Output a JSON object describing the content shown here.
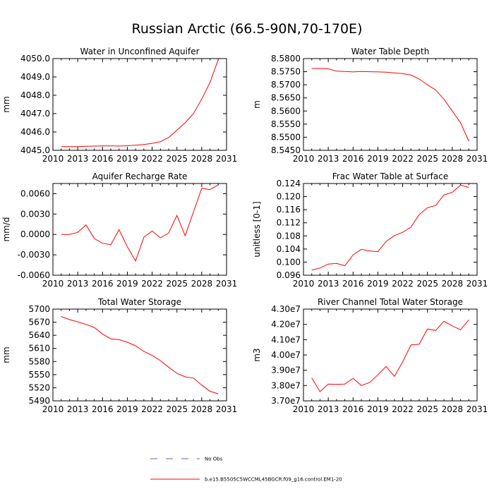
{
  "title": "Russian Arctic (66.5-90N,70-170E)",
  "colors": {
    "model": "#ff0000",
    "obs": "#6666aa",
    "axis": "#000000"
  },
  "legend": [
    {
      "label": "No Obs",
      "style": "dashed",
      "color": "#6666aa"
    },
    {
      "label": "b.e15.B5505C5WCCML45BGCR.f09_g16.control.EM1-20",
      "style": "solid",
      "color": "#ff0000"
    }
  ],
  "chart_data": [
    {
      "type": "line",
      "title": "Water in Unconfined Aquifer",
      "ylabel": "mm",
      "xlim": [
        2010,
        2031
      ],
      "xticks": [
        2010,
        2013,
        2016,
        2019,
        2022,
        2025,
        2028,
        2031
      ],
      "ylim": [
        4045.0,
        4050.0
      ],
      "yticks": [
        4045.0,
        4046.0,
        4047.0,
        4048.0,
        4049.0,
        4050.0
      ],
      "ytick_labels": [
        "4045.0",
        "4046.0",
        "4047.0",
        "4048.0",
        "4049.0",
        "4050.0"
      ],
      "x": [
        2011,
        2012,
        2013,
        2014,
        2015,
        2016,
        2017,
        2018,
        2019,
        2020,
        2021,
        2022,
        2023,
        2024,
        2025,
        2026,
        2027,
        2028,
        2029,
        2030
      ],
      "series": [
        {
          "name": "b.e15.B5505C5WCCML45BGCR.f09_g16.control.EM1-20",
          "values": [
            4045.2,
            4045.2,
            4045.2,
            4045.22,
            4045.23,
            4045.24,
            4045.24,
            4045.23,
            4045.25,
            4045.28,
            4045.32,
            4045.38,
            4045.47,
            4045.7,
            4046.1,
            4046.5,
            4047.0,
            4047.8,
            4048.7,
            4049.95
          ]
        }
      ]
    },
    {
      "type": "line",
      "title": "Water Table Depth",
      "ylabel": "m",
      "xlim": [
        2010,
        2031
      ],
      "xticks": [
        2010,
        2013,
        2016,
        2019,
        2022,
        2025,
        2028,
        2031
      ],
      "ylim": [
        8.545,
        8.58
      ],
      "yticks": [
        8.545,
        8.55,
        8.555,
        8.56,
        8.565,
        8.57,
        8.575,
        8.58
      ],
      "ytick_labels": [
        "8.5450",
        "8.5500",
        "8.5550",
        "8.5600",
        "8.5650",
        "8.5700",
        "8.5750",
        "8.5800"
      ],
      "x": [
        2011,
        2012,
        2013,
        2014,
        2015,
        2016,
        2017,
        2018,
        2019,
        2020,
        2021,
        2022,
        2023,
        2024,
        2025,
        2026,
        2027,
        2028,
        2029,
        2030
      ],
      "series": [
        {
          "name": "b.e15.B5505C5WCCML45BGCR.f09_g16.control.EM1-20",
          "values": [
            8.5762,
            8.5762,
            8.5761,
            8.5752,
            8.5751,
            8.5749,
            8.5751,
            8.575,
            8.5749,
            8.5748,
            8.5745,
            8.5743,
            8.5737,
            8.5722,
            8.57,
            8.568,
            8.5645,
            8.56,
            8.5555,
            8.5485
          ]
        }
      ]
    },
    {
      "type": "line",
      "title": "Aquifer Recharge Rate",
      "ylabel": "mm/d",
      "xlim": [
        2010,
        2031
      ],
      "xticks": [
        2010,
        2013,
        2016,
        2019,
        2022,
        2025,
        2028,
        2031
      ],
      "ylim": [
        -0.006,
        0.0075
      ],
      "yticks": [
        -0.006,
        -0.003,
        0.0,
        0.003,
        0.006
      ],
      "ytick_labels": [
        "-0.0060",
        "-0.0030",
        "0.0000",
        "0.0030",
        "0.0060"
      ],
      "x": [
        2011,
        2012,
        2013,
        2014,
        2015,
        2016,
        2017,
        2018,
        2019,
        2020,
        2021,
        2022,
        2023,
        2024,
        2025,
        2026,
        2027,
        2028,
        2029,
        2030
      ],
      "series": [
        {
          "name": "b.e15.B5505C5WCCML45BGCR.f09_g16.control.EM1-20",
          "values": [
            0.0,
            0.0,
            0.0003,
            0.0014,
            -0.0006,
            -0.0013,
            -0.0015,
            0.0007,
            -0.0018,
            -0.0039,
            -0.0004,
            0.0005,
            -0.0005,
            0.0002,
            0.0028,
            -0.0002,
            0.0033,
            0.0068,
            0.0066,
            0.0073
          ]
        }
      ]
    },
    {
      "type": "line",
      "title": "Frac Water Table at Surface",
      "ylabel": "unitless [0-1]",
      "xlim": [
        2010,
        2031
      ],
      "xticks": [
        2010,
        2013,
        2016,
        2019,
        2022,
        2025,
        2028,
        2031
      ],
      "ylim": [
        0.096,
        0.124
      ],
      "yticks": [
        0.096,
        0.1,
        0.104,
        0.108,
        0.112,
        0.116,
        0.12,
        0.124
      ],
      "ytick_labels": [
        "0.096",
        "0.100",
        "0.104",
        "0.108",
        "0.112",
        "0.116",
        "0.120",
        "0.124"
      ],
      "x": [
        2011,
        2012,
        2013,
        2014,
        2015,
        2016,
        2017,
        2018,
        2019,
        2020,
        2021,
        2022,
        2023,
        2024,
        2025,
        2026,
        2027,
        2028,
        2029,
        2030
      ],
      "series": [
        {
          "name": "b.e15.B5505C5WCCML45BGCR.f09_g16.control.EM1-20",
          "values": [
            0.0976,
            0.0982,
            0.0994,
            0.0996,
            0.0989,
            0.1022,
            0.1039,
            0.1034,
            0.1032,
            0.1063,
            0.1081,
            0.1091,
            0.1107,
            0.1145,
            0.1166,
            0.1173,
            0.1205,
            0.1213,
            0.1235,
            0.1228
          ]
        }
      ]
    },
    {
      "type": "line",
      "title": "Total Water Storage",
      "ylabel": "mm",
      "xlim": [
        2010,
        2031
      ],
      "xticks": [
        2010,
        2013,
        2016,
        2019,
        2022,
        2025,
        2028,
        2031
      ],
      "ylim": [
        5490,
        5700
      ],
      "yticks": [
        5490,
        5520,
        5550,
        5580,
        5610,
        5640,
        5670,
        5700
      ],
      "ytick_labels": [
        "5490",
        "5520",
        "5550",
        "5580",
        "5610",
        "5640",
        "5670",
        "5700"
      ],
      "x": [
        2011,
        2012,
        2013,
        2014,
        2015,
        2016,
        2017,
        2018,
        2019,
        2020,
        2021,
        2022,
        2023,
        2024,
        2025,
        2026,
        2027,
        2028,
        2029,
        2030
      ],
      "series": [
        {
          "name": "b.e15.B5505C5WCCML45BGCR.f09_g16.control.EM1-20",
          "values": [
            5683,
            5676,
            5671,
            5665,
            5658,
            5643,
            5632,
            5630,
            5624,
            5616,
            5603,
            5594,
            5582,
            5567,
            5553,
            5545,
            5542,
            5526,
            5512,
            5506
          ]
        }
      ]
    },
    {
      "type": "line",
      "title": "River Channel Total Water Storage",
      "ylabel": "m3",
      "xlim": [
        2010,
        2031
      ],
      "xticks": [
        2010,
        2013,
        2016,
        2019,
        2022,
        2025,
        2028,
        2031
      ],
      "ylim": [
        37000000,
        43000000
      ],
      "yticks": [
        37000000,
        38000000,
        39000000,
        40000000,
        41000000,
        42000000,
        43000000
      ],
      "ytick_labels": [
        "3.70e7",
        "3.80e7",
        "3.90e7",
        "4.00e7",
        "4.10e7",
        "4.20e7",
        "4.30e7"
      ],
      "x": [
        2011,
        2012,
        2013,
        2014,
        2015,
        2016,
        2017,
        2018,
        2019,
        2020,
        2021,
        2022,
        2023,
        2024,
        2025,
        2026,
        2027,
        2028,
        2029,
        2030
      ],
      "series": [
        {
          "name": "b.e15.B5505C5WCCML45BGCR.f09_g16.control.EM1-20",
          "values": [
            38500000,
            37600000,
            38100000,
            38080000,
            38100000,
            38470000,
            38000000,
            38200000,
            38700000,
            39250000,
            38600000,
            39550000,
            40650000,
            40700000,
            41700000,
            41600000,
            42200000,
            41900000,
            41650000,
            42300000
          ]
        }
      ]
    }
  ]
}
